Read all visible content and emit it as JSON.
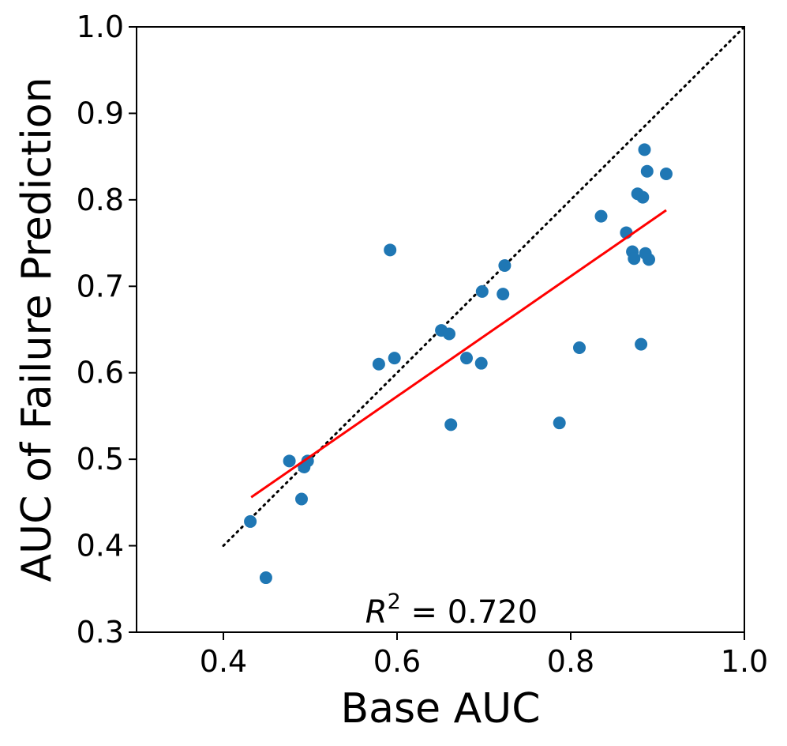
{
  "chart_data": {
    "type": "scatter",
    "title": "",
    "xlabel": "Base AUC",
    "ylabel": "AUC of Failure Prediction",
    "xlim": [
      0.3,
      1.0
    ],
    "ylim": [
      0.3,
      1.0
    ],
    "xticks": [
      0.4,
      0.6,
      0.8,
      1.0
    ],
    "xtick_labels": [
      "0.4",
      "0.6",
      "0.8",
      "1.0"
    ],
    "yticks": [
      0.3,
      0.4,
      0.5,
      0.6,
      0.7,
      0.8,
      0.9,
      1.0
    ],
    "ytick_labels": [
      "0.3",
      "0.4",
      "0.5",
      "0.6",
      "0.7",
      "0.8",
      "0.9",
      "1.0"
    ],
    "grid": false,
    "colors": {
      "points": "#1f77b4",
      "fit_line": "#ff0000",
      "identity_line": "#000000"
    },
    "points": [
      {
        "x": 0.431,
        "y": 0.428
      },
      {
        "x": 0.449,
        "y": 0.363
      },
      {
        "x": 0.476,
        "y": 0.498
      },
      {
        "x": 0.49,
        "y": 0.454
      },
      {
        "x": 0.493,
        "y": 0.491
      },
      {
        "x": 0.497,
        "y": 0.498
      },
      {
        "x": 0.579,
        "y": 0.61
      },
      {
        "x": 0.592,
        "y": 0.742
      },
      {
        "x": 0.597,
        "y": 0.617
      },
      {
        "x": 0.651,
        "y": 0.649
      },
      {
        "x": 0.66,
        "y": 0.645
      },
      {
        "x": 0.662,
        "y": 0.54
      },
      {
        "x": 0.68,
        "y": 0.617
      },
      {
        "x": 0.697,
        "y": 0.611
      },
      {
        "x": 0.698,
        "y": 0.694
      },
      {
        "x": 0.722,
        "y": 0.691
      },
      {
        "x": 0.724,
        "y": 0.724
      },
      {
        "x": 0.787,
        "y": 0.542
      },
      {
        "x": 0.81,
        "y": 0.629
      },
      {
        "x": 0.835,
        "y": 0.781
      },
      {
        "x": 0.864,
        "y": 0.762
      },
      {
        "x": 0.871,
        "y": 0.74
      },
      {
        "x": 0.873,
        "y": 0.732
      },
      {
        "x": 0.877,
        "y": 0.807
      },
      {
        "x": 0.881,
        "y": 0.633
      },
      {
        "x": 0.883,
        "y": 0.803
      },
      {
        "x": 0.885,
        "y": 0.858
      },
      {
        "x": 0.886,
        "y": 0.738
      },
      {
        "x": 0.888,
        "y": 0.833
      },
      {
        "x": 0.89,
        "y": 0.731
      },
      {
        "x": 0.91,
        "y": 0.83
      }
    ],
    "fit_line": {
      "x": [
        0.432,
        0.91
      ],
      "y": [
        0.456,
        0.788
      ]
    },
    "identity_line": {
      "x": [
        0.4,
        1.0
      ],
      "y": [
        0.4,
        1.0
      ]
    },
    "annotation": {
      "symbol": "R",
      "exponent": "2",
      "text": " = 0.720"
    }
  }
}
